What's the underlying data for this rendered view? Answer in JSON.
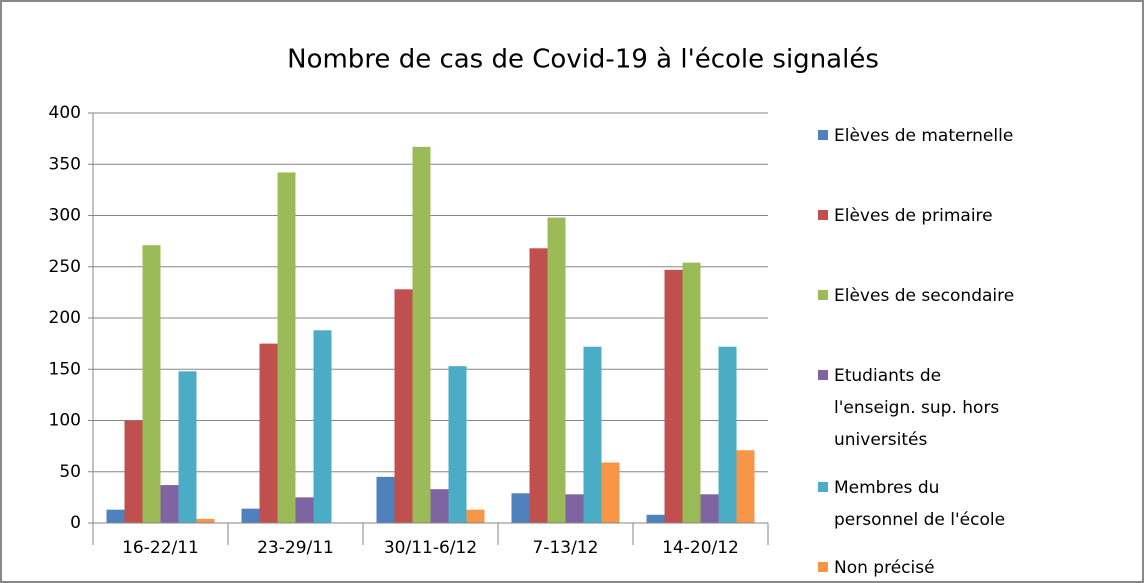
{
  "chart_data": {
    "type": "bar",
    "title": "Nombre de cas de Covid-19 à l'école signalés",
    "categories": [
      "16-22/11",
      "23-29/11",
      "30/11-6/12",
      "7-13/12",
      "14-20/12"
    ],
    "series": [
      {
        "name": "Elèves de maternelle",
        "color": "#4f81bd",
        "values": [
          13,
          14,
          45,
          29,
          8
        ]
      },
      {
        "name": "Elèves de primaire",
        "color": "#c0504d",
        "values": [
          100,
          175,
          228,
          268,
          247
        ]
      },
      {
        "name": "Elèves de secondaire",
        "color": "#9bbb59",
        "values": [
          271,
          342,
          367,
          298,
          254
        ]
      },
      {
        "name": "Etudiants de l'enseign. sup. hors universités",
        "color": "#8064a2",
        "values": [
          37,
          25,
          33,
          28,
          28
        ]
      },
      {
        "name": "Membres du personnel de l'école",
        "color": "#4bacc6",
        "values": [
          148,
          188,
          153,
          172,
          172
        ]
      },
      {
        "name": "Non précisé",
        "color": "#f79646",
        "values": [
          4,
          0,
          13,
          59,
          71
        ]
      }
    ],
    "ylim": [
      0,
      400
    ],
    "yticks": [
      0,
      50,
      100,
      150,
      200,
      250,
      300,
      350,
      400
    ],
    "grid": true,
    "legend": "right"
  }
}
